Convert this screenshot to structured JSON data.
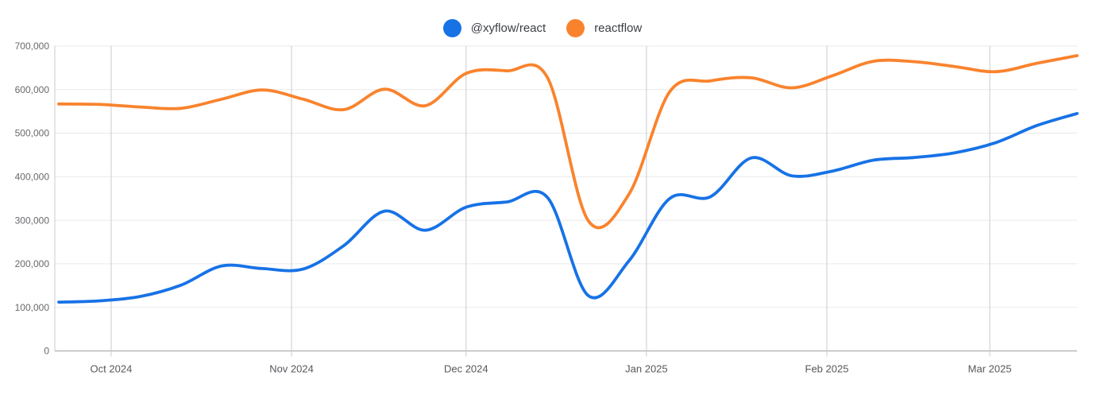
{
  "page": {
    "background": "#ffffff"
  },
  "legend": {
    "items": [
      {
        "label": "@xyflow/react",
        "color": "#1772e6"
      },
      {
        "label": "reactflow",
        "color": "#f9832d"
      }
    ]
  },
  "chart_data": {
    "type": "line",
    "title": "",
    "xlabel": "",
    "ylabel": "",
    "interval": "weekly",
    "grid": true,
    "legend_position": "top-center",
    "ylim": [
      0,
      700000
    ],
    "x": [
      "2024-09-22",
      "2024-09-29",
      "2024-10-06",
      "2024-10-13",
      "2024-10-20",
      "2024-10-27",
      "2024-11-03",
      "2024-11-10",
      "2024-11-17",
      "2024-11-24",
      "2024-12-01",
      "2024-12-08",
      "2024-12-15",
      "2024-12-22",
      "2024-12-29",
      "2025-01-05",
      "2025-01-12",
      "2025-01-19",
      "2025-01-26",
      "2025-02-02",
      "2025-02-09",
      "2025-02-16",
      "2025-02-23",
      "2025-03-02",
      "2025-03-09",
      "2025-03-16"
    ],
    "series": [
      {
        "name": "@xyflow/react",
        "color": "#1772e6",
        "values": [
          112000,
          115000,
          125000,
          151000,
          195000,
          189000,
          188000,
          242000,
          321000,
          277000,
          330000,
          342000,
          352000,
          127000,
          207000,
          350000,
          354000,
          443000,
          402000,
          413000,
          438000,
          444000,
          455000,
          478000,
          517000,
          545000
        ]
      },
      {
        "name": "reactflow",
        "color": "#f9832d",
        "values": [
          567000,
          566000,
          560000,
          557000,
          578000,
          599000,
          578000,
          554000,
          601000,
          563000,
          637000,
          643000,
          627000,
          299000,
          360000,
          595000,
          620000,
          627000,
          604000,
          632000,
          665000,
          664000,
          653000,
          641000,
          660000,
          678000
        ]
      }
    ],
    "y_ticks": {
      "values": [
        0,
        100000,
        200000,
        300000,
        400000,
        500000,
        600000,
        700000
      ],
      "labels": [
        "0",
        "100,000",
        "200,000",
        "300,000",
        "400,000",
        "500,000",
        "600,000",
        "700,000"
      ]
    },
    "x_ticks": [
      {
        "label": "Oct 2024",
        "day_offset": 9
      },
      {
        "label": "Nov 2024",
        "day_offset": 40
      },
      {
        "label": "Dec 2024",
        "day_offset": 70
      },
      {
        "label": "Jan 2025",
        "day_offset": 101
      },
      {
        "label": "Feb 2025",
        "day_offset": 132
      },
      {
        "label": "Mar 2025",
        "day_offset": 160
      }
    ],
    "colors": {
      "grid_light": "#e9e9ea",
      "grid_month": "#c9cbcd",
      "axis_line": "#b5b8bb",
      "y_label_text": "#67696c",
      "x_label_text": "#55585c"
    }
  }
}
